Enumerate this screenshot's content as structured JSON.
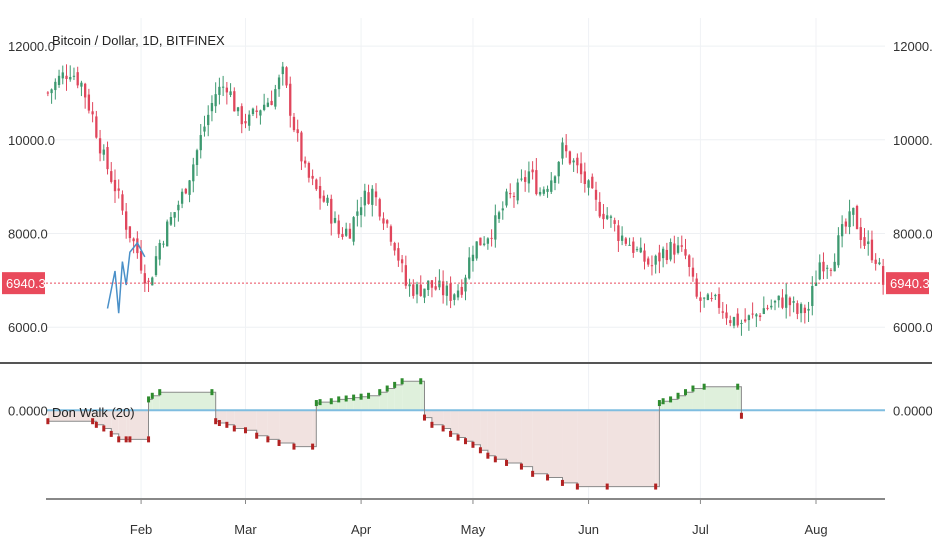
{
  "chart_data": [
    {
      "type": "candlestick",
      "title": "Bitcoin / Dollar, 1D, BITFINEX",
      "ylim": [
        5300,
        12600
      ],
      "y_ticks": [
        "12000.0",
        "10000.0",
        "8000.0",
        "6000.0"
      ],
      "y_tick_values": [
        12000,
        10000,
        8000,
        6000
      ],
      "last_price": 6940.3,
      "last_price_label": "6940.3",
      "colors": {
        "up": "#3d9970",
        "down": "#e0465c",
        "price_line": "#e94a5c",
        "wick_trace": "#4a90c8"
      },
      "close_path": [
        [
          0,
          11000
        ],
        [
          3,
          11300
        ],
        [
          6,
          11500
        ],
        [
          9,
          11200
        ],
        [
          12,
          10500
        ],
        [
          15,
          9600
        ],
        [
          18,
          9000
        ],
        [
          21,
          8200
        ],
        [
          24,
          7600
        ],
        [
          27,
          6900
        ],
        [
          30,
          7800
        ],
        [
          33,
          8300
        ],
        [
          36,
          8800
        ],
        [
          39,
          9500
        ],
        [
          42,
          10300
        ],
        [
          45,
          11000
        ],
        [
          48,
          11200
        ],
        [
          51,
          10500
        ],
        [
          54,
          10400
        ],
        [
          57,
          10700
        ],
        [
          60,
          10900
        ],
        [
          63,
          11400
        ],
        [
          66,
          10300
        ],
        [
          69,
          9300
        ],
        [
          72,
          8900
        ],
        [
          75,
          8600
        ],
        [
          78,
          8000
        ],
        [
          81,
          8100
        ],
        [
          84,
          8700
        ],
        [
          87,
          8900
        ],
        [
          90,
          8400
        ],
        [
          93,
          7800
        ],
        [
          96,
          6900
        ],
        [
          99,
          6800
        ],
        [
          102,
          6900
        ],
        [
          105,
          6800
        ],
        [
          108,
          6700
        ],
        [
          111,
          6900
        ],
        [
          114,
          7700
        ],
        [
          117,
          7900
        ],
        [
          120,
          8200
        ],
        [
          123,
          8700
        ],
        [
          126,
          8900
        ],
        [
          129,
          9300
        ],
        [
          132,
          8900
        ],
        [
          135,
          9200
        ],
        [
          138,
          9800
        ],
        [
          141,
          9500
        ],
        [
          144,
          9100
        ],
        [
          147,
          8600
        ],
        [
          150,
          8400
        ],
        [
          153,
          8000
        ],
        [
          156,
          7800
        ],
        [
          159,
          7500
        ],
        [
          162,
          7300
        ],
        [
          165,
          7600
        ],
        [
          168,
          7700
        ],
        [
          171,
          7500
        ],
        [
          174,
          6600
        ],
        [
          177,
          6500
        ],
        [
          180,
          6500
        ],
        [
          183,
          6200
        ],
        [
          186,
          6100
        ],
        [
          189,
          6200
        ],
        [
          192,
          6400
        ],
        [
          195,
          6500
        ],
        [
          198,
          6600
        ],
        [
          201,
          6300
        ],
        [
          204,
          6400
        ],
        [
          207,
          7400
        ],
        [
          210,
          7400
        ],
        [
          213,
          8000
        ],
        [
          216,
          8400
        ],
        [
          219,
          7800
        ],
        [
          222,
          7500
        ],
        [
          224,
          6940
        ]
      ],
      "x_ticks": [
        "Feb",
        "Mar",
        "Apr",
        "May",
        "Jun",
        "Jul",
        "Aug"
      ],
      "x_tick_index": [
        25,
        53,
        84,
        114,
        145,
        175,
        206
      ],
      "n_days": 225
    },
    {
      "type": "step-area",
      "indicator_label": "Don Walk (20)",
      "y_tick": "0.0000",
      "colors": {
        "zero_line": "#7fbde0",
        "positive": "#2e8b2e",
        "negative": "#b22222",
        "positive_fill": "#dff0dc",
        "negative_fill": "#f1e2e0"
      },
      "steps": [
        [
          0,
          -0.6
        ],
        [
          12,
          -0.6
        ],
        [
          13,
          -0.8
        ],
        [
          15,
          -1.0
        ],
        [
          17,
          -1.3
        ],
        [
          19,
          -1.6
        ],
        [
          21,
          -1.6
        ],
        [
          22,
          -1.6
        ],
        [
          27,
          -1.6
        ],
        [
          27,
          0.6
        ],
        [
          28,
          0.8
        ],
        [
          30,
          1.0
        ],
        [
          44,
          1.0
        ],
        [
          45,
          -0.6
        ],
        [
          46,
          -0.7
        ],
        [
          48,
          -0.8
        ],
        [
          50,
          -1.0
        ],
        [
          53,
          -1.1
        ],
        [
          56,
          -1.4
        ],
        [
          59,
          -1.6
        ],
        [
          62,
          -1.8
        ],
        [
          66,
          -2.0
        ],
        [
          71,
          -2.0
        ],
        [
          72,
          0.4
        ],
        [
          73,
          0.45
        ],
        [
          76,
          0.5
        ],
        [
          78,
          0.6
        ],
        [
          80,
          0.65
        ],
        [
          82,
          0.7
        ],
        [
          84,
          0.75
        ],
        [
          86,
          0.8
        ],
        [
          89,
          1.0
        ],
        [
          91,
          1.2
        ],
        [
          93,
          1.4
        ],
        [
          95,
          1.6
        ],
        [
          100,
          1.6
        ],
        [
          101,
          -0.4
        ],
        [
          103,
          -0.8
        ],
        [
          106,
          -1.0
        ],
        [
          108,
          -1.3
        ],
        [
          110,
          -1.5
        ],
        [
          112,
          -1.7
        ],
        [
          114,
          -1.9
        ],
        [
          116,
          -2.2
        ],
        [
          118,
          -2.5
        ],
        [
          120,
          -2.7
        ],
        [
          123,
          -2.9
        ],
        [
          127,
          -3.1
        ],
        [
          130,
          -3.5
        ],
        [
          134,
          -3.7
        ],
        [
          138,
          -4.0
        ],
        [
          142,
          -4.2
        ],
        [
          150,
          -4.2
        ],
        [
          163,
          -4.2
        ],
        [
          164,
          0.4
        ],
        [
          165,
          0.5
        ],
        [
          167,
          0.6
        ],
        [
          169,
          0.8
        ],
        [
          171,
          1.0
        ],
        [
          173,
          1.2
        ],
        [
          176,
          1.3
        ],
        [
          185,
          1.3
        ],
        [
          186,
          -0.3
        ]
      ],
      "ylim": [
        -4.5,
        2.0
      ]
    }
  ]
}
